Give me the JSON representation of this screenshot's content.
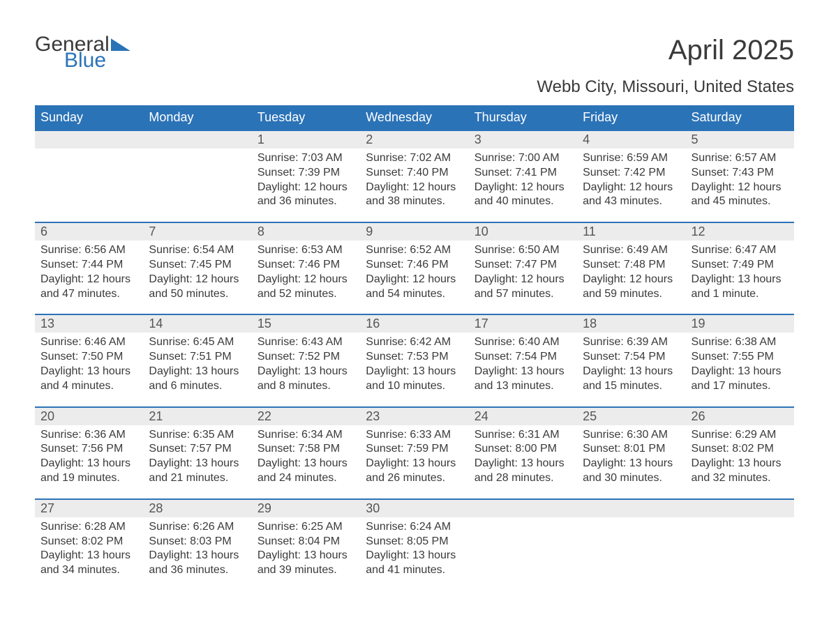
{
  "logo": {
    "line1": "General",
    "line2": "Blue"
  },
  "title": "April 2025",
  "location": "Webb City, Missouri, United States",
  "colors": {
    "header_bg": "#2b73b7",
    "header_text": "#ffffff",
    "daynum_bg": "#ececec",
    "row_border": "#2b73b7",
    "body_text": "#3a3a3a",
    "page_bg": "#ffffff",
    "logo_accent": "#2b73b7"
  },
  "typography": {
    "title_fontsize": 40,
    "location_fontsize": 24,
    "dayheader_fontsize": 18,
    "daynum_fontsize": 18,
    "cell_fontsize": 16
  },
  "day_headers": [
    "Sunday",
    "Monday",
    "Tuesday",
    "Wednesday",
    "Thursday",
    "Friday",
    "Saturday"
  ],
  "weeks": [
    [
      null,
      null,
      {
        "n": "1",
        "sunrise": "7:03 AM",
        "sunset": "7:39 PM",
        "daylight": "12 hours and 36 minutes."
      },
      {
        "n": "2",
        "sunrise": "7:02 AM",
        "sunset": "7:40 PM",
        "daylight": "12 hours and 38 minutes."
      },
      {
        "n": "3",
        "sunrise": "7:00 AM",
        "sunset": "7:41 PM",
        "daylight": "12 hours and 40 minutes."
      },
      {
        "n": "4",
        "sunrise": "6:59 AM",
        "sunset": "7:42 PM",
        "daylight": "12 hours and 43 minutes."
      },
      {
        "n": "5",
        "sunrise": "6:57 AM",
        "sunset": "7:43 PM",
        "daylight": "12 hours and 45 minutes."
      }
    ],
    [
      {
        "n": "6",
        "sunrise": "6:56 AM",
        "sunset": "7:44 PM",
        "daylight": "12 hours and 47 minutes."
      },
      {
        "n": "7",
        "sunrise": "6:54 AM",
        "sunset": "7:45 PM",
        "daylight": "12 hours and 50 minutes."
      },
      {
        "n": "8",
        "sunrise": "6:53 AM",
        "sunset": "7:46 PM",
        "daylight": "12 hours and 52 minutes."
      },
      {
        "n": "9",
        "sunrise": "6:52 AM",
        "sunset": "7:46 PM",
        "daylight": "12 hours and 54 minutes."
      },
      {
        "n": "10",
        "sunrise": "6:50 AM",
        "sunset": "7:47 PM",
        "daylight": "12 hours and 57 minutes."
      },
      {
        "n": "11",
        "sunrise": "6:49 AM",
        "sunset": "7:48 PM",
        "daylight": "12 hours and 59 minutes."
      },
      {
        "n": "12",
        "sunrise": "6:47 AM",
        "sunset": "7:49 PM",
        "daylight": "13 hours and 1 minute."
      }
    ],
    [
      {
        "n": "13",
        "sunrise": "6:46 AM",
        "sunset": "7:50 PM",
        "daylight": "13 hours and 4 minutes."
      },
      {
        "n": "14",
        "sunrise": "6:45 AM",
        "sunset": "7:51 PM",
        "daylight": "13 hours and 6 minutes."
      },
      {
        "n": "15",
        "sunrise": "6:43 AM",
        "sunset": "7:52 PM",
        "daylight": "13 hours and 8 minutes."
      },
      {
        "n": "16",
        "sunrise": "6:42 AM",
        "sunset": "7:53 PM",
        "daylight": "13 hours and 10 minutes."
      },
      {
        "n": "17",
        "sunrise": "6:40 AM",
        "sunset": "7:54 PM",
        "daylight": "13 hours and 13 minutes."
      },
      {
        "n": "18",
        "sunrise": "6:39 AM",
        "sunset": "7:54 PM",
        "daylight": "13 hours and 15 minutes."
      },
      {
        "n": "19",
        "sunrise": "6:38 AM",
        "sunset": "7:55 PM",
        "daylight": "13 hours and 17 minutes."
      }
    ],
    [
      {
        "n": "20",
        "sunrise": "6:36 AM",
        "sunset": "7:56 PM",
        "daylight": "13 hours and 19 minutes."
      },
      {
        "n": "21",
        "sunrise": "6:35 AM",
        "sunset": "7:57 PM",
        "daylight": "13 hours and 21 minutes."
      },
      {
        "n": "22",
        "sunrise": "6:34 AM",
        "sunset": "7:58 PM",
        "daylight": "13 hours and 24 minutes."
      },
      {
        "n": "23",
        "sunrise": "6:33 AM",
        "sunset": "7:59 PM",
        "daylight": "13 hours and 26 minutes."
      },
      {
        "n": "24",
        "sunrise": "6:31 AM",
        "sunset": "8:00 PM",
        "daylight": "13 hours and 28 minutes."
      },
      {
        "n": "25",
        "sunrise": "6:30 AM",
        "sunset": "8:01 PM",
        "daylight": "13 hours and 30 minutes."
      },
      {
        "n": "26",
        "sunrise": "6:29 AM",
        "sunset": "8:02 PM",
        "daylight": "13 hours and 32 minutes."
      }
    ],
    [
      {
        "n": "27",
        "sunrise": "6:28 AM",
        "sunset": "8:02 PM",
        "daylight": "13 hours and 34 minutes."
      },
      {
        "n": "28",
        "sunrise": "6:26 AM",
        "sunset": "8:03 PM",
        "daylight": "13 hours and 36 minutes."
      },
      {
        "n": "29",
        "sunrise": "6:25 AM",
        "sunset": "8:04 PM",
        "daylight": "13 hours and 39 minutes."
      },
      {
        "n": "30",
        "sunrise": "6:24 AM",
        "sunset": "8:05 PM",
        "daylight": "13 hours and 41 minutes."
      },
      null,
      null,
      null
    ]
  ],
  "labels": {
    "sunrise": "Sunrise: ",
    "sunset": "Sunset: ",
    "daylight": "Daylight: "
  }
}
